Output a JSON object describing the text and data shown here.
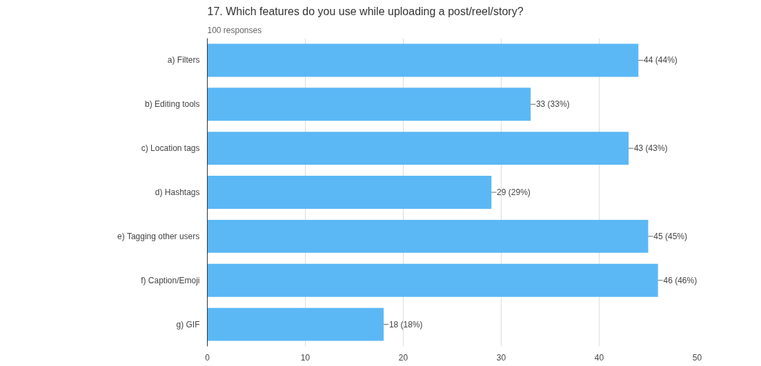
{
  "chart_data": {
    "type": "bar",
    "orientation": "horizontal",
    "title": "17. Which features do you use while uploading a post/reel/story?",
    "subtitle": "100 responses",
    "categories": [
      "a) Filters",
      "b) Editing tools",
      "c) Location tags",
      "d) Hashtags",
      "e) Tagging other users",
      "f) Caption/Emoji",
      "g) GIF"
    ],
    "values": [
      44,
      33,
      43,
      29,
      45,
      46,
      18
    ],
    "value_labels": [
      "44 (44%)",
      "33 (33%)",
      "43 (43%)",
      "29 (29%)",
      "45 (45%)",
      "46 (46%)",
      "18 (18%)"
    ],
    "color": "#5bb8f5",
    "xlim": [
      0,
      50
    ],
    "xticks": [
      0,
      10,
      20,
      30,
      40,
      50
    ],
    "grid": "x"
  }
}
